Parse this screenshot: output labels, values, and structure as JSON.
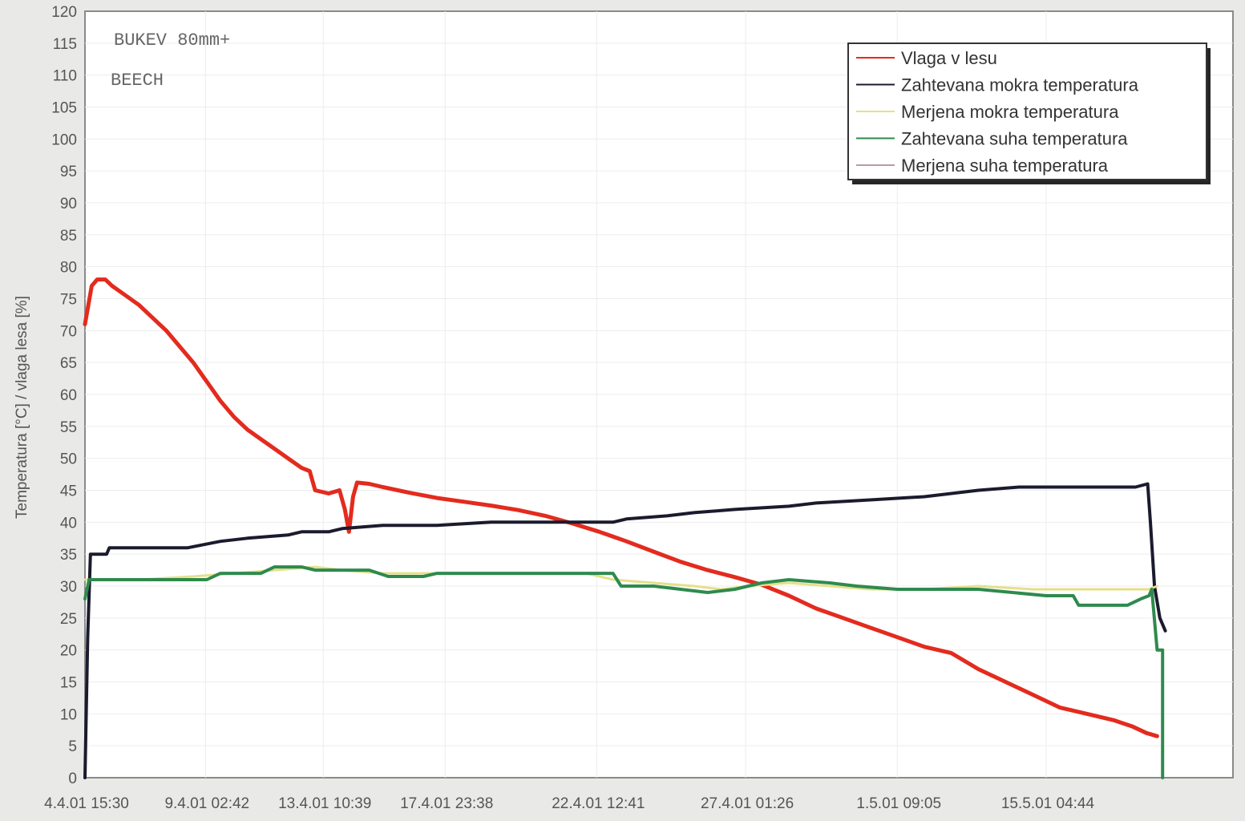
{
  "chart_data": {
    "type": "line",
    "annotations": [
      "BUKEV 80mm+",
      "BEECH"
    ],
    "ylabel": "Temperatura [°C] / vlaga lesa [%]",
    "xlabel": "",
    "ylim": [
      0,
      120
    ],
    "yticks": [
      0,
      5,
      10,
      15,
      20,
      25,
      30,
      35,
      40,
      45,
      50,
      55,
      60,
      65,
      70,
      75,
      80,
      85,
      90,
      95,
      100,
      105,
      110,
      115,
      120
    ],
    "ytick_labels": [
      "0",
      "5",
      "10",
      "15",
      "20",
      "25",
      "30",
      "35",
      "40",
      "45",
      "50",
      "55",
      "60",
      "65",
      "70",
      "75",
      "80",
      "85",
      "90",
      "95",
      "100",
      "105",
      "110",
      "115",
      "120"
    ],
    "x_domain": [
      0,
      42.4
    ],
    "xticks": [
      {
        "x": 0,
        "label": "4.4.01 15:30"
      },
      {
        "x": 4.45,
        "label": "9.4.01 02:42"
      },
      {
        "x": 8.8,
        "label": "13.4.01 10:39"
      },
      {
        "x": 13.3,
        "label": "17.4.01 23:38"
      },
      {
        "x": 18.9,
        "label": "22.4.01 12:41"
      },
      {
        "x": 24.4,
        "label": "27.4.01 01:26"
      },
      {
        "x": 30.0,
        "label": "1.5.01 09:05"
      },
      {
        "x": 35.5,
        "label": "15.5.01 04:44"
      }
    ],
    "grid": true,
    "legend_position": "top-right",
    "series": [
      {
        "name": "Vlaga v lesu",
        "color": "#e32b1e",
        "points": [
          [
            0,
            71
          ],
          [
            0.25,
            77
          ],
          [
            0.45,
            78
          ],
          [
            0.75,
            78
          ],
          [
            1.0,
            77
          ],
          [
            1.5,
            75.5
          ],
          [
            2.0,
            74
          ],
          [
            2.5,
            72
          ],
          [
            3.0,
            70
          ],
          [
            3.5,
            67.5
          ],
          [
            4.0,
            65
          ],
          [
            4.5,
            62
          ],
          [
            5.0,
            59
          ],
          [
            5.5,
            56.5
          ],
          [
            6.0,
            54.5
          ],
          [
            6.5,
            53
          ],
          [
            7.0,
            51.5
          ],
          [
            7.5,
            50
          ],
          [
            8.0,
            48.5
          ],
          [
            8.3,
            48
          ],
          [
            8.5,
            45
          ],
          [
            9.0,
            44.5
          ],
          [
            9.4,
            45
          ],
          [
            9.6,
            42
          ],
          [
            9.75,
            38.5
          ],
          [
            9.9,
            44
          ],
          [
            10.05,
            46.2
          ],
          [
            10.5,
            46
          ],
          [
            11.0,
            45.5
          ],
          [
            12.0,
            44.6
          ],
          [
            13.0,
            43.8
          ],
          [
            14.0,
            43.2
          ],
          [
            15.0,
            42.6
          ],
          [
            16.0,
            41.9
          ],
          [
            17.0,
            41
          ],
          [
            18.0,
            39.8
          ],
          [
            19.0,
            38.5
          ],
          [
            20.0,
            37
          ],
          [
            21.0,
            35.4
          ],
          [
            22.0,
            33.8
          ],
          [
            23.0,
            32.5
          ],
          [
            24.0,
            31.4
          ],
          [
            25.0,
            30.2
          ],
          [
            26.0,
            28.5
          ],
          [
            27.0,
            26.5
          ],
          [
            28.0,
            25
          ],
          [
            29.0,
            23.5
          ],
          [
            30.0,
            22
          ],
          [
            31.0,
            20.5
          ],
          [
            32.0,
            19.5
          ],
          [
            33.0,
            17
          ],
          [
            34.0,
            15
          ],
          [
            35.0,
            13
          ],
          [
            36.0,
            11
          ],
          [
            37.0,
            10
          ],
          [
            38.0,
            9
          ],
          [
            38.7,
            8
          ],
          [
            39.2,
            7
          ],
          [
            39.6,
            6.5
          ]
        ]
      },
      {
        "name": "Zahtevana mokra temperatura",
        "color": "#1b1b2e",
        "points": [
          [
            0,
            0
          ],
          [
            0.1,
            22
          ],
          [
            0.2,
            35
          ],
          [
            0.8,
            35
          ],
          [
            0.9,
            36
          ],
          [
            2.5,
            36
          ],
          [
            3.8,
            36
          ],
          [
            4.4,
            36.5
          ],
          [
            5.0,
            37
          ],
          [
            6.0,
            37.5
          ],
          [
            7.5,
            38
          ],
          [
            8.0,
            38.5
          ],
          [
            9.0,
            38.5
          ],
          [
            9.5,
            39
          ],
          [
            11.0,
            39.5
          ],
          [
            13.0,
            39.5
          ],
          [
            15.0,
            40
          ],
          [
            17.5,
            40
          ],
          [
            19.5,
            40
          ],
          [
            20.0,
            40.5
          ],
          [
            21.5,
            41
          ],
          [
            22.5,
            41.5
          ],
          [
            24.0,
            42
          ],
          [
            26.0,
            42.5
          ],
          [
            27.0,
            43
          ],
          [
            29.0,
            43.5
          ],
          [
            31.0,
            44
          ],
          [
            33.0,
            45
          ],
          [
            34.5,
            45.5
          ],
          [
            36.0,
            45.5
          ],
          [
            38.0,
            45.5
          ],
          [
            38.8,
            45.5
          ],
          [
            39.25,
            46
          ],
          [
            39.35,
            40
          ],
          [
            39.5,
            30
          ],
          [
            39.7,
            25
          ],
          [
            39.9,
            23
          ]
        ]
      },
      {
        "name": "Merjena mokra temperatura",
        "color": "#e5e08a",
        "points": [
          [
            0,
            31
          ],
          [
            2.0,
            31
          ],
          [
            4.0,
            31.5
          ],
          [
            5.5,
            32
          ],
          [
            7.0,
            32.5
          ],
          [
            8.5,
            33
          ],
          [
            9.5,
            32.5
          ],
          [
            11.0,
            32
          ],
          [
            13.0,
            32
          ],
          [
            15.0,
            32
          ],
          [
            17.0,
            32
          ],
          [
            18.5,
            32
          ],
          [
            19.5,
            31
          ],
          [
            21.0,
            30.5
          ],
          [
            22.5,
            30
          ],
          [
            23.5,
            29.5
          ],
          [
            24.5,
            30
          ],
          [
            26.0,
            30.5
          ],
          [
            27.5,
            30
          ],
          [
            29.0,
            29.5
          ],
          [
            31.0,
            29.5
          ],
          [
            33.0,
            30
          ],
          [
            35.0,
            29.5
          ],
          [
            37.0,
            29.5
          ],
          [
            38.5,
            29.5
          ],
          [
            39.3,
            29.5
          ],
          [
            39.6,
            30
          ]
        ]
      },
      {
        "name": "Zahtevana suha temperatura",
        "color": "#2e8a4e",
        "points": [
          [
            0,
            28
          ],
          [
            0.15,
            31
          ],
          [
            2.0,
            31
          ],
          [
            4.5,
            31
          ],
          [
            5.0,
            32
          ],
          [
            6.5,
            32
          ],
          [
            7.0,
            33
          ],
          [
            8.0,
            33
          ],
          [
            8.5,
            32.5
          ],
          [
            10.5,
            32.5
          ],
          [
            11.2,
            31.5
          ],
          [
            12.5,
            31.5
          ],
          [
            13.0,
            32
          ],
          [
            19.5,
            32
          ],
          [
            19.8,
            30
          ],
          [
            21.0,
            30
          ],
          [
            22.0,
            29.5
          ],
          [
            23.0,
            29
          ],
          [
            24.0,
            29.5
          ],
          [
            25.0,
            30.5
          ],
          [
            26.0,
            31
          ],
          [
            27.5,
            30.5
          ],
          [
            28.5,
            30
          ],
          [
            30.0,
            29.5
          ],
          [
            33.0,
            29.5
          ],
          [
            35.5,
            28.5
          ],
          [
            36.5,
            28.5
          ],
          [
            36.7,
            27
          ],
          [
            38.5,
            27
          ],
          [
            39.0,
            28
          ],
          [
            39.3,
            28.5
          ],
          [
            39.4,
            29.5
          ],
          [
            39.6,
            20
          ],
          [
            39.8,
            20
          ],
          [
            39.8,
            0
          ]
        ]
      },
      {
        "name": "Merjena suha temperatura",
        "color": "#b89aa8",
        "points": []
      }
    ]
  }
}
